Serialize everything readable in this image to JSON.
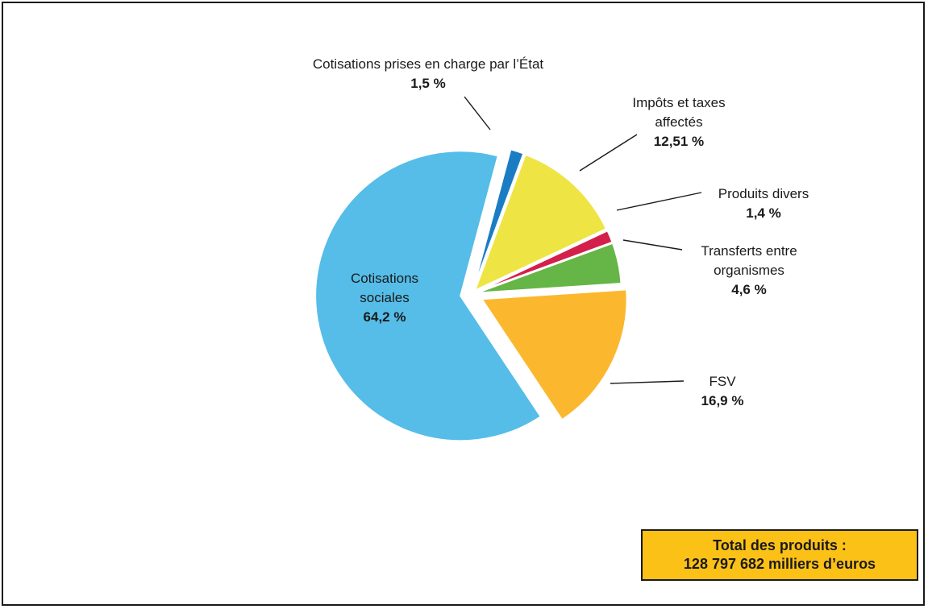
{
  "chart_data": {
    "type": "pie",
    "title": "",
    "slices": [
      {
        "label": "Cotisations prises en charge par l’État",
        "value": 1.5,
        "value_label": "1,5 %",
        "color": "#1a7dc4"
      },
      {
        "label": "Impôts et taxes affectés",
        "value": 12.51,
        "value_label": "12,51 %",
        "color": "#eee544"
      },
      {
        "label": "Produits divers",
        "value": 1.4,
        "value_label": "1,4 %",
        "color": "#d31f49"
      },
      {
        "label": "Transferts entre organismes",
        "value": 4.6,
        "value_label": "4,6 %",
        "color": "#65b547"
      },
      {
        "label": "FSV",
        "value": 16.9,
        "value_label": "16,9 %",
        "color": "#fbb82e"
      },
      {
        "label": "Cotisations sociales",
        "value": 64.2,
        "value_label": "64,2 %",
        "color": "#55bde8"
      }
    ],
    "label_lines": [
      [
        "Cotisations prises en charge par l’État"
      ],
      [
        "Impôts et taxes",
        "affectés"
      ],
      [
        "Produits divers"
      ],
      [
        "Transferts entre",
        "organismes"
      ],
      [
        "FSV"
      ],
      [
        "Cotisations",
        "sociales"
      ]
    ]
  },
  "total": {
    "line1": "Total des produits :",
    "line2": "128 797 682 milliers d’euros"
  }
}
